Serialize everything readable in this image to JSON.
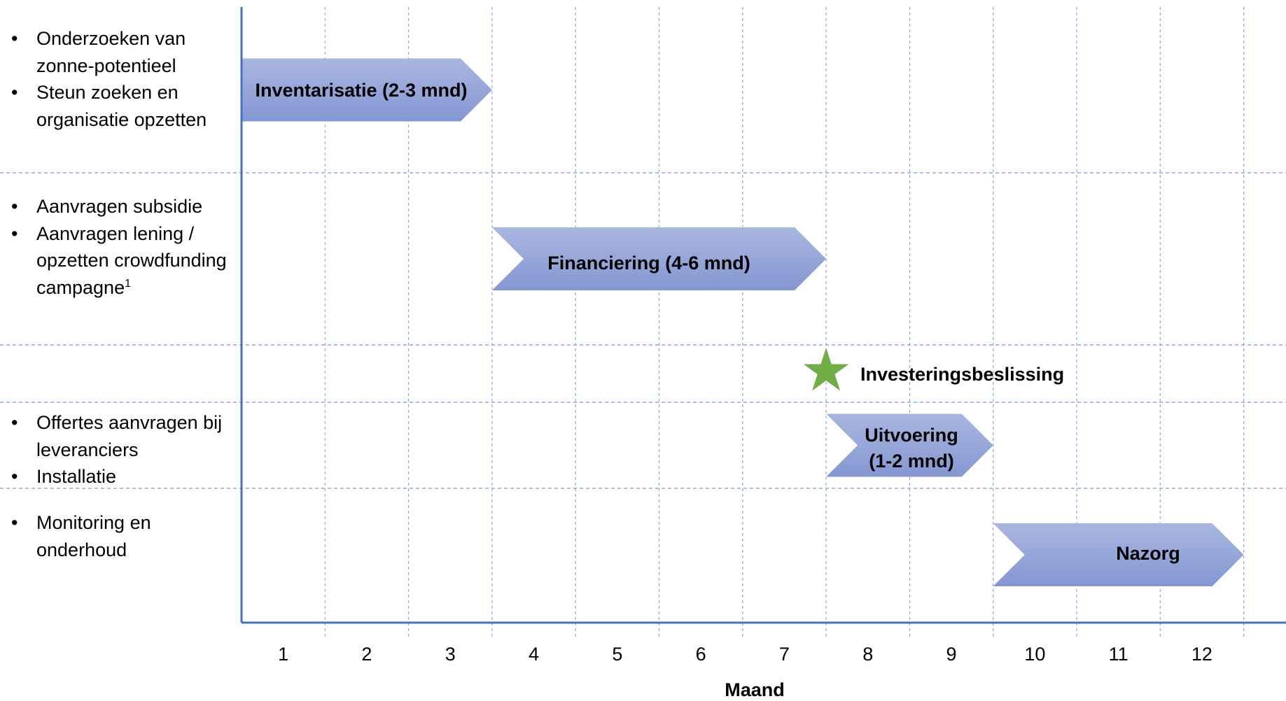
{
  "rows": [
    {
      "tasks": [
        "Onderzoeken van zonne-potentieel",
        "Steun zoeken en organisatie opzetten"
      ]
    },
    {
      "tasks": [
        "Aanvragen subsidie",
        "Aanvragen lening / opzetten crowdfunding campagne"
      ],
      "footnote": "1"
    },
    {
      "tasks": []
    },
    {
      "tasks": [
        "Offertes aanvragen bij leveranciers",
        "Installatie"
      ]
    },
    {
      "tasks": [
        "Monitoring en onderhoud"
      ]
    }
  ],
  "phases": [
    {
      "label": "Inventarisatie (2-3 mnd)",
      "start_month": 1,
      "end_month": 3,
      "row": 0
    },
    {
      "label_line1": "Financiering (4-6 mnd)",
      "start_month": 4,
      "end_month": 7,
      "row": 1
    },
    {
      "label_line1": "Uitvoering",
      "label_line2": "(1-2 mnd)",
      "start_month": 8,
      "end_month": 9,
      "row": 3
    },
    {
      "label": "Nazorg",
      "start_month": 10,
      "end_month": 12,
      "row": 4
    }
  ],
  "milestone": {
    "label": "Investeringsbeslissing",
    "at_month_boundary": 7,
    "row": 2,
    "color": "#70AD47"
  },
  "x_axis": {
    "title": "Maand",
    "months": [
      "1",
      "2",
      "3",
      "4",
      "5",
      "6",
      "7",
      "8",
      "9",
      "10",
      "11",
      "12"
    ]
  },
  "colors": {
    "arrow_light": "#A9B6E0",
    "arrow_dark": "#8497D2",
    "grid": "#8EA9DB",
    "axis": "#4472C4"
  }
}
